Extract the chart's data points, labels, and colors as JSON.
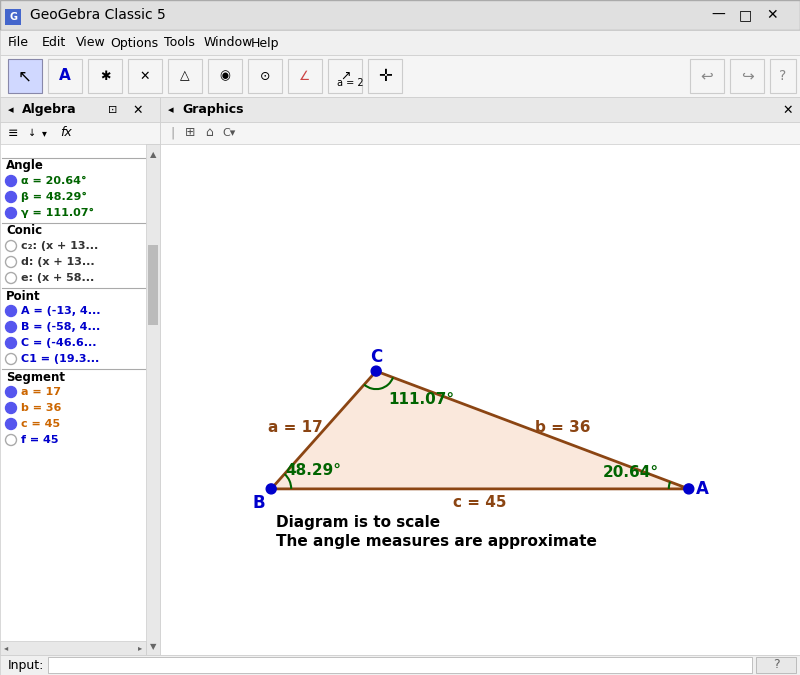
{
  "title": "GeoGebra Classic 5",
  "angles": {
    "alpha": 20.64,
    "beta": 48.29,
    "gamma": 111.07
  },
  "sides": {
    "a": 17,
    "b": 36,
    "c": 45
  },
  "vertex_color": "#0000CC",
  "edge_color": "#8B4513",
  "fill_color": "#FAE8DC",
  "angle_arc_color": "#006400",
  "label_color_segment": "#8B4513",
  "label_color_angle": "#006400",
  "label_color_vertex": "#0000CC",
  "text_note1": "Diagram is to scale",
  "text_note2": "The angle measures are approximate",
  "sections": [
    {
      "name": "Angle",
      "items": [
        {
          "text": "α = 20.64°",
          "color": "#006400",
          "filled": true
        },
        {
          "text": "β = 48.29°",
          "color": "#006400",
          "filled": true
        },
        {
          "text": "γ = 111.07°",
          "color": "#006400",
          "filled": true
        }
      ]
    },
    {
      "name": "Conic",
      "items": [
        {
          "text": "c₂: (x + 13...",
          "color": "#333333",
          "filled": false
        },
        {
          "text": "d: (x + 13...",
          "color": "#333333",
          "filled": false
        },
        {
          "text": "e: (x + 58...",
          "color": "#333333",
          "filled": false
        }
      ]
    },
    {
      "name": "Point",
      "items": [
        {
          "text": "A = (-13, 4...",
          "color": "#0000CC",
          "filled": true
        },
        {
          "text": "B = (-58, 4...",
          "color": "#0000CC",
          "filled": true
        },
        {
          "text": "C = (-46.6...",
          "color": "#0000CC",
          "filled": true
        },
        {
          "text": "C1 = (19.3...",
          "color": "#0000CC",
          "filled": false
        }
      ]
    },
    {
      "name": "Segment",
      "items": [
        {
          "text": "a = 17",
          "color": "#CC6600",
          "filled": true
        },
        {
          "text": "b = 36",
          "color": "#CC6600",
          "filled": true
        },
        {
          "text": "c = 45",
          "color": "#CC6600",
          "filled": true
        },
        {
          "text": "f = 45",
          "color": "#0000CC",
          "filled": false
        }
      ]
    }
  ]
}
